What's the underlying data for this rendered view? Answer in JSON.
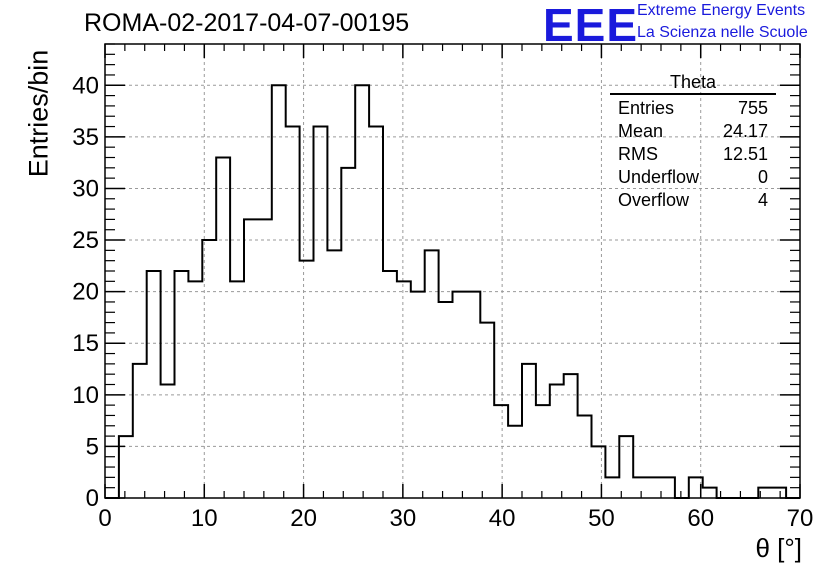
{
  "chart_data": {
    "type": "bar",
    "title": "ROMA-02-2017-04-07-00195",
    "xlabel": "θ [°]",
    "ylabel": "Entries/bin",
    "xlim": [
      0,
      70
    ],
    "ylim": [
      0,
      44
    ],
    "x_ticks": [
      0,
      10,
      20,
      30,
      40,
      50,
      60,
      70
    ],
    "y_ticks": [
      0,
      5,
      10,
      15,
      20,
      25,
      30,
      35,
      40
    ],
    "grid": true,
    "bin_width": 1.4,
    "bin_start": 0,
    "values": [
      0,
      6,
      13,
      22,
      11,
      22,
      21,
      25,
      33,
      21,
      27,
      27,
      40,
      36,
      23,
      36,
      24,
      32,
      40,
      36,
      22,
      21,
      20,
      24,
      19,
      20,
      20,
      17,
      9,
      7,
      13,
      9,
      11,
      12,
      8,
      5,
      2,
      6,
      2,
      2,
      2,
      0,
      2,
      1,
      0,
      0,
      0,
      1,
      1,
      0
    ],
    "stats_box": {
      "title": "Theta",
      "rows": [
        {
          "label": "Entries",
          "value": "755"
        },
        {
          "label": "Mean",
          "value": "24.17"
        },
        {
          "label": "RMS",
          "value": "12.51"
        },
        {
          "label": "Underflow",
          "value": "0"
        },
        {
          "label": "Overflow",
          "value": "4"
        }
      ]
    }
  },
  "logo": {
    "text": "EEE",
    "line1": "Extreme Energy Events",
    "line2": "La Scienza nelle Scuole"
  },
  "colors": {
    "logo": "#1a1adc",
    "histogram": "#000000",
    "grid": "#9a9a9a"
  }
}
